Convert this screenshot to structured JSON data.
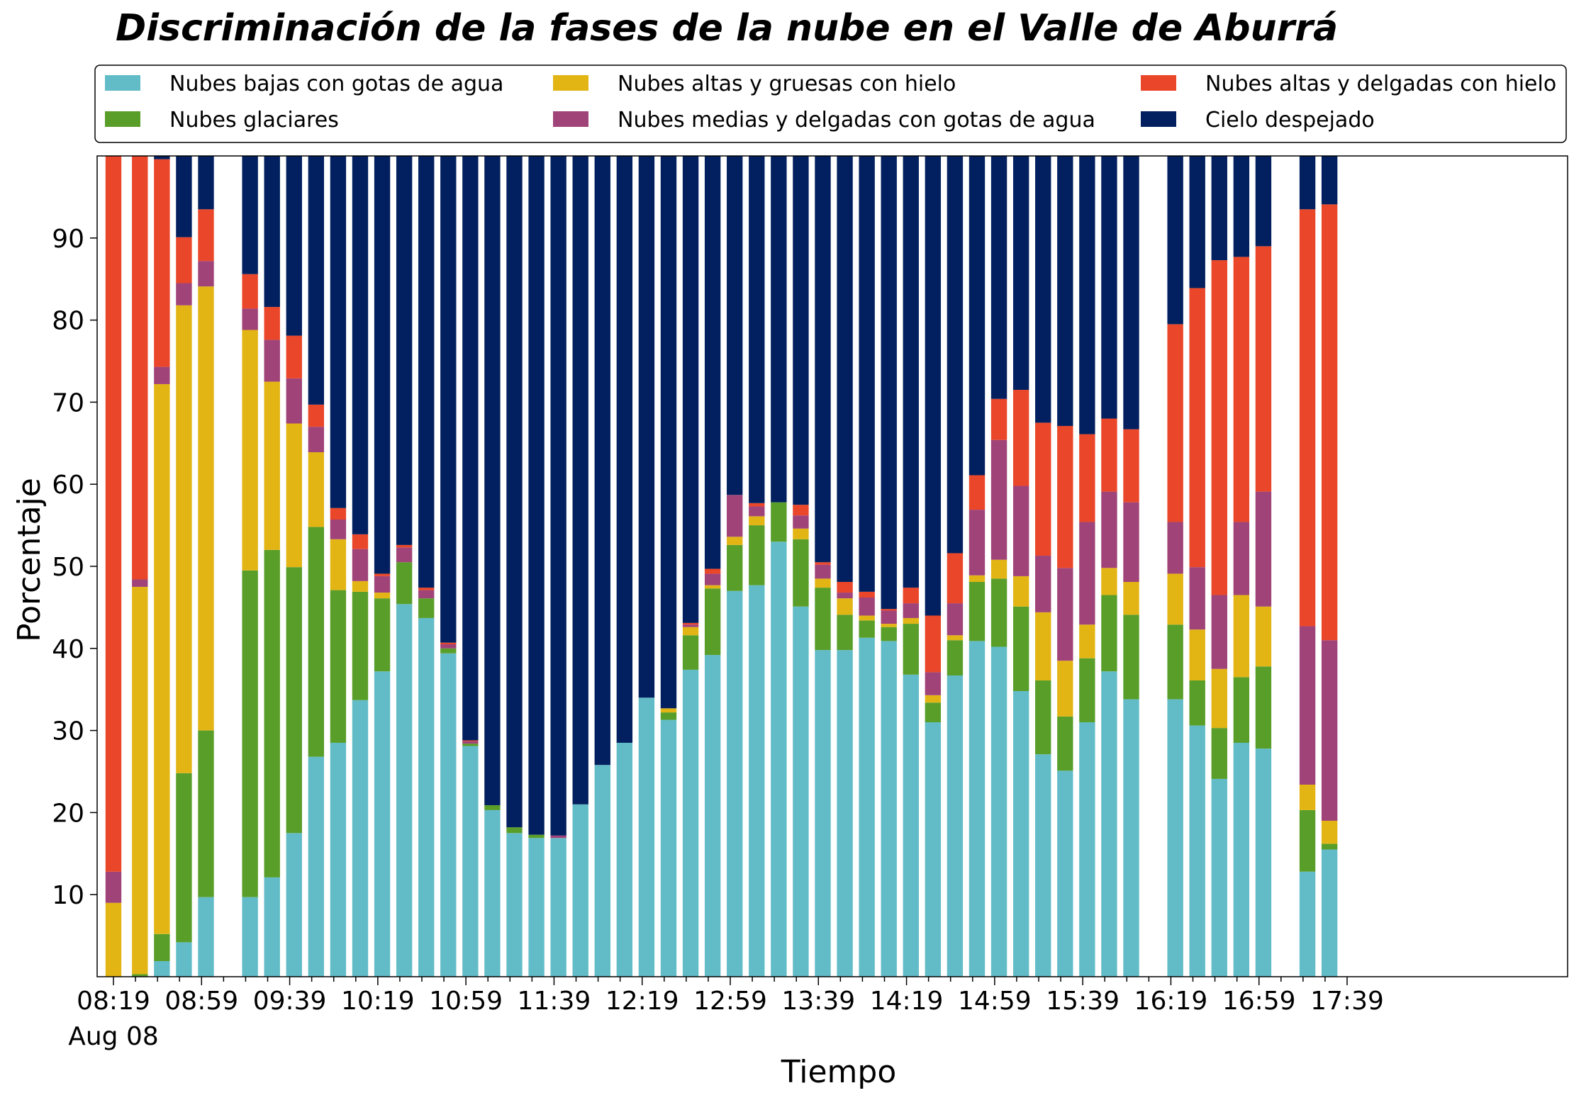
{
  "chart_data": {
    "type": "bar",
    "stacked": true,
    "title": "Discriminación de la fases de la nube en el Valle de Aburrá",
    "xlabel": "Tiempo",
    "ylabel": "Porcentaje",
    "ylim": [
      0,
      100
    ],
    "yticks": [
      10,
      20,
      30,
      40,
      50,
      60,
      70,
      80,
      90
    ],
    "grid": false,
    "legend_position": "top",
    "date_label": "Aug 08",
    "x_start_minute": 499,
    "x_end_minute": 1067,
    "bar_step_minutes": 8,
    "bar_width_minutes": 7.2,
    "xticks": [
      {
        "minute": 499,
        "label": "08:19"
      },
      {
        "minute": 539,
        "label": "08:59"
      },
      {
        "minute": 579,
        "label": "09:39"
      },
      {
        "minute": 619,
        "label": "10:19"
      },
      {
        "minute": 659,
        "label": "10:59"
      },
      {
        "minute": 699,
        "label": "11:39"
      },
      {
        "minute": 739,
        "label": "12:19"
      },
      {
        "minute": 779,
        "label": "12:59"
      },
      {
        "minute": 819,
        "label": "13:39"
      },
      {
        "minute": 859,
        "label": "14:19"
      },
      {
        "minute": 899,
        "label": "14:59"
      },
      {
        "minute": 939,
        "label": "15:39"
      },
      {
        "minute": 979,
        "label": "16:19"
      },
      {
        "minute": 1019,
        "label": "16:59"
      },
      {
        "minute": 1059,
        "label": "17:39"
      }
    ],
    "series": [
      {
        "name": "Nubes bajas con gotas de agua",
        "color": "#62BCC8"
      },
      {
        "name": "Nubes glaciares",
        "color": "#5A9E2A"
      },
      {
        "name": "Nubes altas y gruesas con hielo",
        "color": "#E2B515"
      },
      {
        "name": "Nubes medias y delgadas con gotas de agua",
        "color": "#A04378"
      },
      {
        "name": "Nubes altas y delgadas con hielo",
        "color": "#EA4629"
      },
      {
        "name": "Cielo despejado",
        "color": "#02205F"
      }
    ],
    "bars": [
      {
        "time": "08:19",
        "values": [
          0,
          0,
          9,
          3.8,
          87.2,
          0
        ]
      },
      {
        "time": "08:31",
        "values": [
          0,
          0.3,
          47.2,
          0.9,
          51.6,
          0
        ]
      },
      {
        "time": "08:41",
        "values": [
          1.9,
          3.3,
          67,
          2.1,
          25.3,
          0.4
        ]
      },
      {
        "time": "08:51",
        "values": [
          4.2,
          20.6,
          57,
          2.7,
          5.6,
          9.9
        ]
      },
      {
        "time": "09:01",
        "values": [
          9.7,
          20.3,
          54.1,
          3.1,
          6.3,
          6.5
        ]
      },
      {
        "time": "09:21",
        "values": [
          9.7,
          39.8,
          29.3,
          2.6,
          4.2,
          14.4
        ]
      },
      {
        "time": "09:31",
        "values": [
          12.1,
          39.9,
          20.5,
          5.1,
          4.0,
          18.4
        ]
      },
      {
        "time": "09:41",
        "values": [
          17.5,
          32.4,
          17.5,
          5.5,
          5.2,
          21.9
        ]
      },
      {
        "time": "09:51",
        "values": [
          26.8,
          28,
          9.1,
          3.1,
          2.7,
          30.3
        ]
      },
      {
        "time": "10:01",
        "values": [
          28.5,
          18.6,
          6.2,
          2.4,
          1.4,
          42.9
        ]
      },
      {
        "time": "10:11",
        "values": [
          33.7,
          13.2,
          1.3,
          3.9,
          1.8,
          46.1
        ]
      },
      {
        "time": "10:21",
        "values": [
          37.2,
          8.9,
          0.7,
          2,
          0.3,
          50.9
        ]
      },
      {
        "time": "10:31",
        "values": [
          45.4,
          5.1,
          0,
          1.8,
          0.3,
          47.4
        ]
      },
      {
        "time": "10:41",
        "values": [
          43.7,
          2.4,
          0,
          1,
          0.3,
          52.6
        ]
      },
      {
        "time": "10:51",
        "values": [
          39.4,
          0.6,
          0,
          0.5,
          0.2,
          59.3
        ]
      },
      {
        "time": "11:01",
        "values": [
          28.1,
          0.3,
          0,
          0.3,
          0.1,
          71.2
        ]
      },
      {
        "time": "11:11",
        "values": [
          20.3,
          0.6,
          0,
          0,
          0,
          79.1
        ]
      },
      {
        "time": "11:21",
        "values": [
          17.5,
          0.7,
          0,
          0,
          0,
          81.8
        ]
      },
      {
        "time": "11:31",
        "values": [
          16.9,
          0.4,
          0,
          0,
          0,
          82.7
        ]
      },
      {
        "time": "11:41",
        "values": [
          16.9,
          0,
          0,
          0.3,
          0,
          82.8
        ]
      },
      {
        "time": "11:51",
        "values": [
          21,
          0,
          0,
          0,
          0,
          79
        ]
      },
      {
        "time": "12:01",
        "values": [
          25.8,
          0,
          0,
          0,
          0,
          74.2
        ]
      },
      {
        "time": "12:11",
        "values": [
          28.5,
          0,
          0,
          0,
          0,
          71.5
        ]
      },
      {
        "time": "12:21",
        "values": [
          34,
          0,
          0,
          0,
          0,
          66
        ]
      },
      {
        "time": "12:31",
        "values": [
          31.3,
          0.9,
          0.5,
          0,
          0,
          67.3
        ]
      },
      {
        "time": "12:41",
        "values": [
          37.4,
          4.2,
          1,
          0.3,
          0.2,
          56.9
        ]
      },
      {
        "time": "12:51",
        "values": [
          39.2,
          8.1,
          0.4,
          1.4,
          0.6,
          50.3
        ]
      },
      {
        "time": "13:01",
        "values": [
          47,
          5.6,
          1,
          5.1,
          0,
          41.3
        ]
      },
      {
        "time": "13:11",
        "values": [
          47.7,
          7.3,
          1.1,
          1.2,
          0.4,
          42.3
        ]
      },
      {
        "time": "13:21",
        "values": [
          53,
          4.8,
          0,
          0,
          0,
          42.2
        ]
      },
      {
        "time": "13:31",
        "values": [
          45.1,
          8.2,
          1.3,
          1.6,
          1.3,
          42.5
        ]
      },
      {
        "time": "13:41",
        "values": [
          39.8,
          7.6,
          1.1,
          1.7,
          0.3,
          49.5
        ]
      },
      {
        "time": "13:51",
        "values": [
          39.8,
          4.3,
          2,
          0.7,
          1.3,
          51.9
        ]
      },
      {
        "time": "14:01",
        "values": [
          41.3,
          2.1,
          0.6,
          2.2,
          0.7,
          53.1
        ]
      },
      {
        "time": "14:11",
        "values": [
          40.9,
          1.7,
          0.4,
          1.6,
          0.2,
          55.2
        ]
      },
      {
        "time": "14:21",
        "values": [
          36.8,
          6.2,
          0.7,
          1.8,
          1.9,
          52.6
        ]
      },
      {
        "time": "14:31",
        "values": [
          31.0,
          2.4,
          0.9,
          2.8,
          6.9,
          56
        ]
      },
      {
        "time": "14:41",
        "values": [
          36.7,
          4.3,
          0.6,
          3.9,
          6.1,
          48.4
        ]
      },
      {
        "time": "14:51",
        "values": [
          40.9,
          7.2,
          0.8,
          8,
          4.2,
          38.9
        ]
      },
      {
        "time": "15:01",
        "values": [
          40.2,
          8.3,
          2.3,
          14.6,
          5.0,
          29.6
        ]
      },
      {
        "time": "15:11",
        "values": [
          34.8,
          10.3,
          3.7,
          11,
          11.7,
          28.5
        ]
      },
      {
        "time": "15:21",
        "values": [
          27.1,
          9,
          8.3,
          6.9,
          16.2,
          32.5
        ]
      },
      {
        "time": "15:31",
        "values": [
          25.1,
          6.6,
          6.8,
          11.3,
          17.3,
          32.9
        ]
      },
      {
        "time": "15:41",
        "values": [
          31,
          7.8,
          4.1,
          12.5,
          10.7,
          33.9
        ]
      },
      {
        "time": "15:51",
        "values": [
          37.2,
          9.3,
          3.3,
          9.3,
          8.9,
          32.0
        ]
      },
      {
        "time": "16:01",
        "values": [
          33.8,
          10.3,
          4,
          9.7,
          8.9,
          33.3
        ]
      },
      {
        "time": "16:21",
        "values": [
          33.8,
          9.1,
          6.2,
          6.3,
          24.1,
          20.5
        ]
      },
      {
        "time": "16:31",
        "values": [
          30.6,
          5.5,
          6.2,
          7.6,
          34,
          16.1
        ]
      },
      {
        "time": "16:41",
        "values": [
          24.1,
          6.2,
          7.2,
          9,
          40.8,
          12.7
        ]
      },
      {
        "time": "16:51",
        "values": [
          28.5,
          8,
          10,
          8.9,
          32.3,
          12.3
        ]
      },
      {
        "time": "17:01",
        "values": [
          27.8,
          10,
          7.3,
          14,
          29.9,
          11
        ]
      },
      {
        "time": "17:21",
        "values": [
          12.8,
          7.5,
          3.1,
          19.3,
          50.8,
          6.5
        ]
      },
      {
        "time": "17:31",
        "values": [
          15.5,
          0.7,
          2.8,
          22,
          53.1,
          5.9
        ]
      }
    ]
  }
}
